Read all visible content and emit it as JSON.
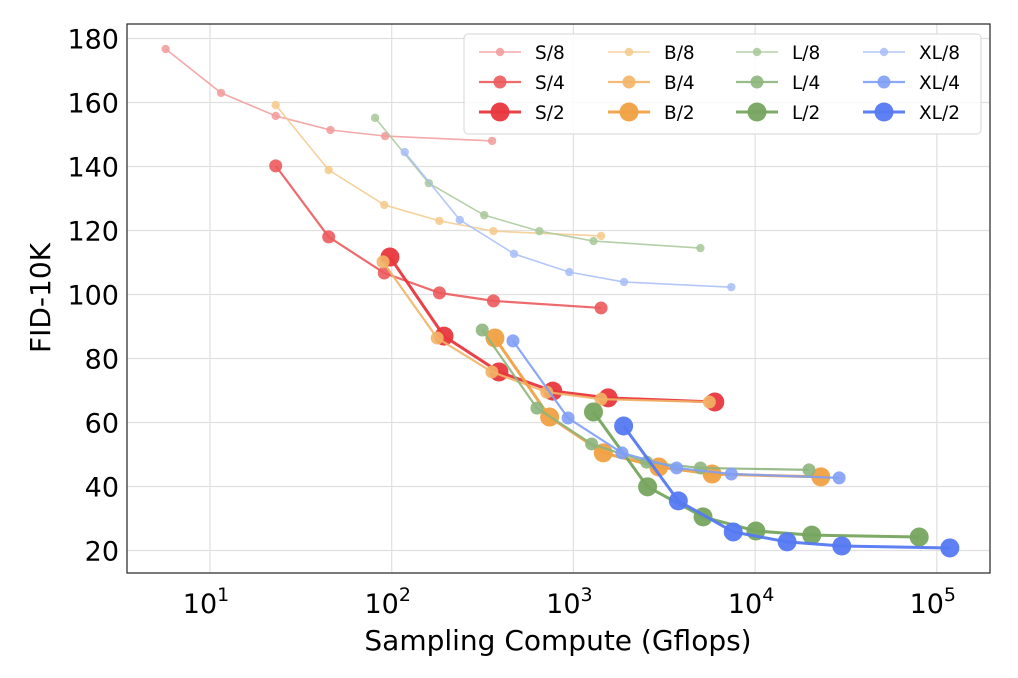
{
  "chart_data": {
    "type": "line",
    "title": "",
    "xlabel": "Sampling Compute (Gflops)",
    "ylabel": "FID-10K",
    "xscale": "log",
    "xlim": [
      3.3,
      170000
    ],
    "ylim": [
      13,
      184
    ],
    "xticks": [
      {
        "value": 10,
        "base": "10",
        "exp": "1"
      },
      {
        "value": 100,
        "base": "10",
        "exp": "2"
      },
      {
        "value": 1000,
        "base": "10",
        "exp": "3"
      },
      {
        "value": 10000,
        "base": "10",
        "exp": "4"
      },
      {
        "value": 100000,
        "base": "10",
        "exp": "5"
      }
    ],
    "yticks": [
      20,
      40,
      60,
      80,
      100,
      120,
      140,
      160,
      180
    ],
    "grid": true,
    "legend": {
      "position": "top-right",
      "columns": 4
    },
    "series": [
      {
        "name": "S/8",
        "color": "#f29a9a",
        "size": "small",
        "x": [
          5.7,
          11.5,
          23,
          46,
          92,
          357
        ],
        "y": [
          176.7,
          163.0,
          155.8,
          151.4,
          149.5,
          148.0
        ]
      },
      {
        "name": "S/4",
        "color": "#ec5a5d",
        "size": "medium",
        "x": [
          23,
          45,
          91,
          183,
          363,
          1420
        ],
        "y": [
          140.2,
          118.0,
          106.7,
          100.5,
          98.0,
          95.8
        ]
      },
      {
        "name": "S/2",
        "color": "#e8373d",
        "size": "large",
        "x": [
          97.8,
          194,
          389,
          770,
          1553,
          6000
        ],
        "y": [
          111.7,
          87.0,
          75.8,
          69.8,
          67.7,
          66.4
        ]
      },
      {
        "name": "B/8",
        "color": "#f5c98a",
        "size": "small",
        "x": [
          23,
          45,
          91,
          183,
          363,
          1420
        ],
        "y": [
          159.2,
          138.9,
          128.0,
          123.0,
          119.8,
          118.3
        ]
      },
      {
        "name": "B/4",
        "color": "#f2b466",
        "size": "medium",
        "x": [
          89.6,
          178,
          356,
          713,
          1420,
          5600
        ],
        "y": [
          110.2,
          86.4,
          75.8,
          69.5,
          67.3,
          66.4
        ]
      },
      {
        "name": "B/2",
        "color": "#f0a143",
        "size": "large",
        "x": [
          370,
          740,
          1460,
          2950,
          5800,
          23000
        ],
        "y": [
          86.4,
          61.7,
          50.5,
          46.1,
          43.9,
          43.0
        ]
      },
      {
        "name": "L/8",
        "color": "#a8c899",
        "size": "small",
        "x": [
          81,
          160,
          323,
          650,
          1290,
          5000
        ],
        "y": [
          155.2,
          134.8,
          124.8,
          119.8,
          116.7,
          114.5
        ]
      },
      {
        "name": "L/4",
        "color": "#8db57d",
        "size": "medium",
        "x": [
          315,
          630,
          1260,
          2530,
          5000,
          19800
        ],
        "y": [
          88.9,
          64.5,
          53.3,
          47.6,
          45.8,
          45.2
        ]
      },
      {
        "name": "L/2",
        "color": "#76a55f",
        "size": "large",
        "x": [
          1290,
          2560,
          5170,
          10100,
          20500,
          80000
        ],
        "y": [
          63.3,
          39.9,
          30.5,
          26.1,
          24.8,
          24.2
        ]
      },
      {
        "name": "XL/8",
        "color": "#a7bdf7",
        "size": "small",
        "x": [
          118,
          237,
          471,
          950,
          1900,
          7400
        ],
        "y": [
          144.5,
          123.3,
          112.7,
          107.0,
          103.9,
          102.3
        ]
      },
      {
        "name": "XL/4",
        "color": "#7f9ff5",
        "size": "medium",
        "x": [
          465,
          935,
          1850,
          3700,
          7400,
          29000
        ],
        "y": [
          85.5,
          61.4,
          50.5,
          45.8,
          43.9,
          42.7
        ]
      },
      {
        "name": "XL/2",
        "color": "#5579f2",
        "size": "large",
        "x": [
          1890,
          3780,
          7580,
          15000,
          30000,
          118000
        ],
        "y": [
          58.9,
          35.5,
          25.8,
          22.7,
          21.4,
          20.8
        ]
      }
    ]
  }
}
